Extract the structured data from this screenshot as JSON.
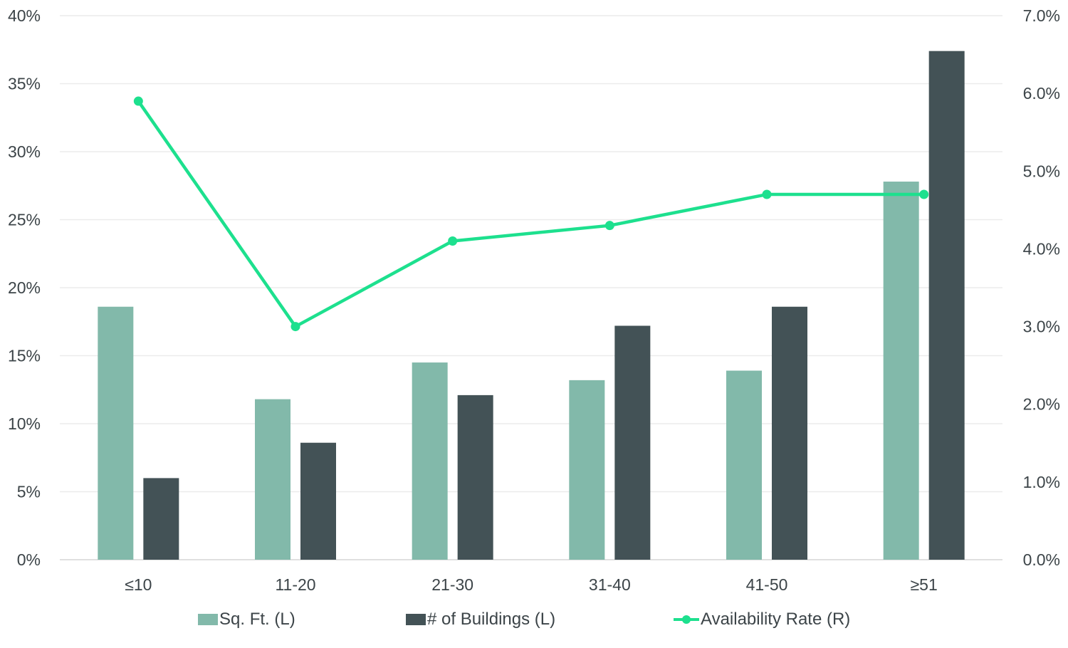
{
  "chart_data": {
    "type": "bar",
    "title": "",
    "xlabel": "",
    "ylabel": "",
    "categories": [
      "≤10",
      "11-20",
      "21-30",
      "31-40",
      "41-50",
      "≥51"
    ],
    "ylim": [
      0,
      40
    ],
    "y_ticks": [
      "0%",
      "5%",
      "10%",
      "15%",
      "20%",
      "25%",
      "30%",
      "35%",
      "40%"
    ],
    "y2lim": [
      0,
      7
    ],
    "y2_ticks": [
      "0.0%",
      "1.0%",
      "2.0%",
      "3.0%",
      "4.0%",
      "5.0%",
      "6.0%",
      "7.0%"
    ],
    "grid": true,
    "legend_position": "bottom",
    "series": [
      {
        "name": "Sq. Ft. (L)",
        "type": "bar",
        "axis": "left",
        "color": "#82b9aa",
        "values": [
          18.6,
          11.8,
          14.5,
          13.2,
          13.9,
          27.8
        ]
      },
      {
        "name": "# of Buildings (L)",
        "type": "bar",
        "axis": "left",
        "color": "#435256",
        "values": [
          6.0,
          8.6,
          12.1,
          17.2,
          18.6,
          37.4
        ]
      },
      {
        "name": "Availability Rate (R)",
        "type": "line",
        "axis": "right",
        "color": "#1de08e",
        "values": [
          5.9,
          3.0,
          4.1,
          4.3,
          4.7,
          4.7
        ]
      }
    ]
  }
}
